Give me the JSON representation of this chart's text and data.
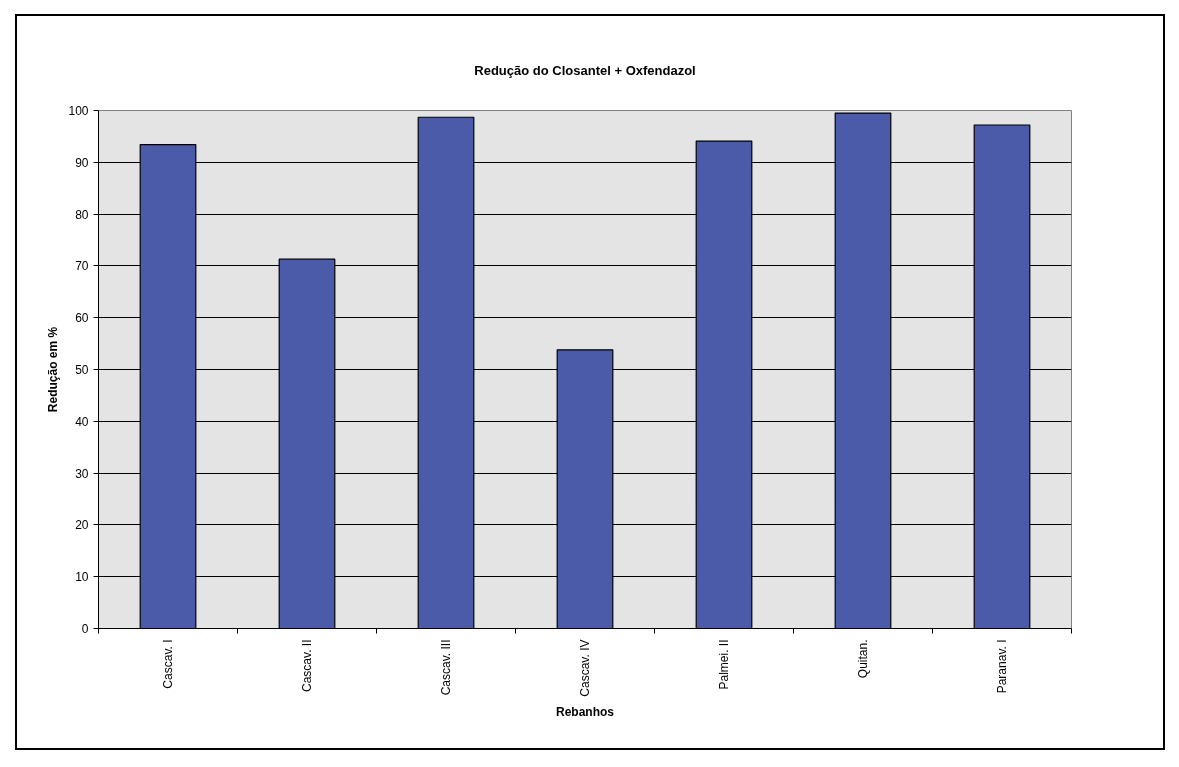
{
  "chart_data": {
    "type": "bar",
    "title": "Redução do Closantel + Oxfendazol",
    "xlabel": "Rebanhos",
    "ylabel": "Redução em %",
    "categories": [
      "Cascav. I",
      "Cascav. II",
      "Cascav. III",
      "Cascav. IV",
      "Palmei. II",
      "Quitan.",
      "Paranav. I"
    ],
    "values": [
      93.4,
      71.3,
      98.7,
      53.8,
      94.1,
      99.5,
      97.2
    ],
    "color": "#4b5ba9",
    "ylim": [
      0,
      100
    ],
    "yticks": [
      0,
      10,
      20,
      30,
      40,
      50,
      60,
      70,
      80,
      90,
      100
    ],
    "grid": "y"
  }
}
